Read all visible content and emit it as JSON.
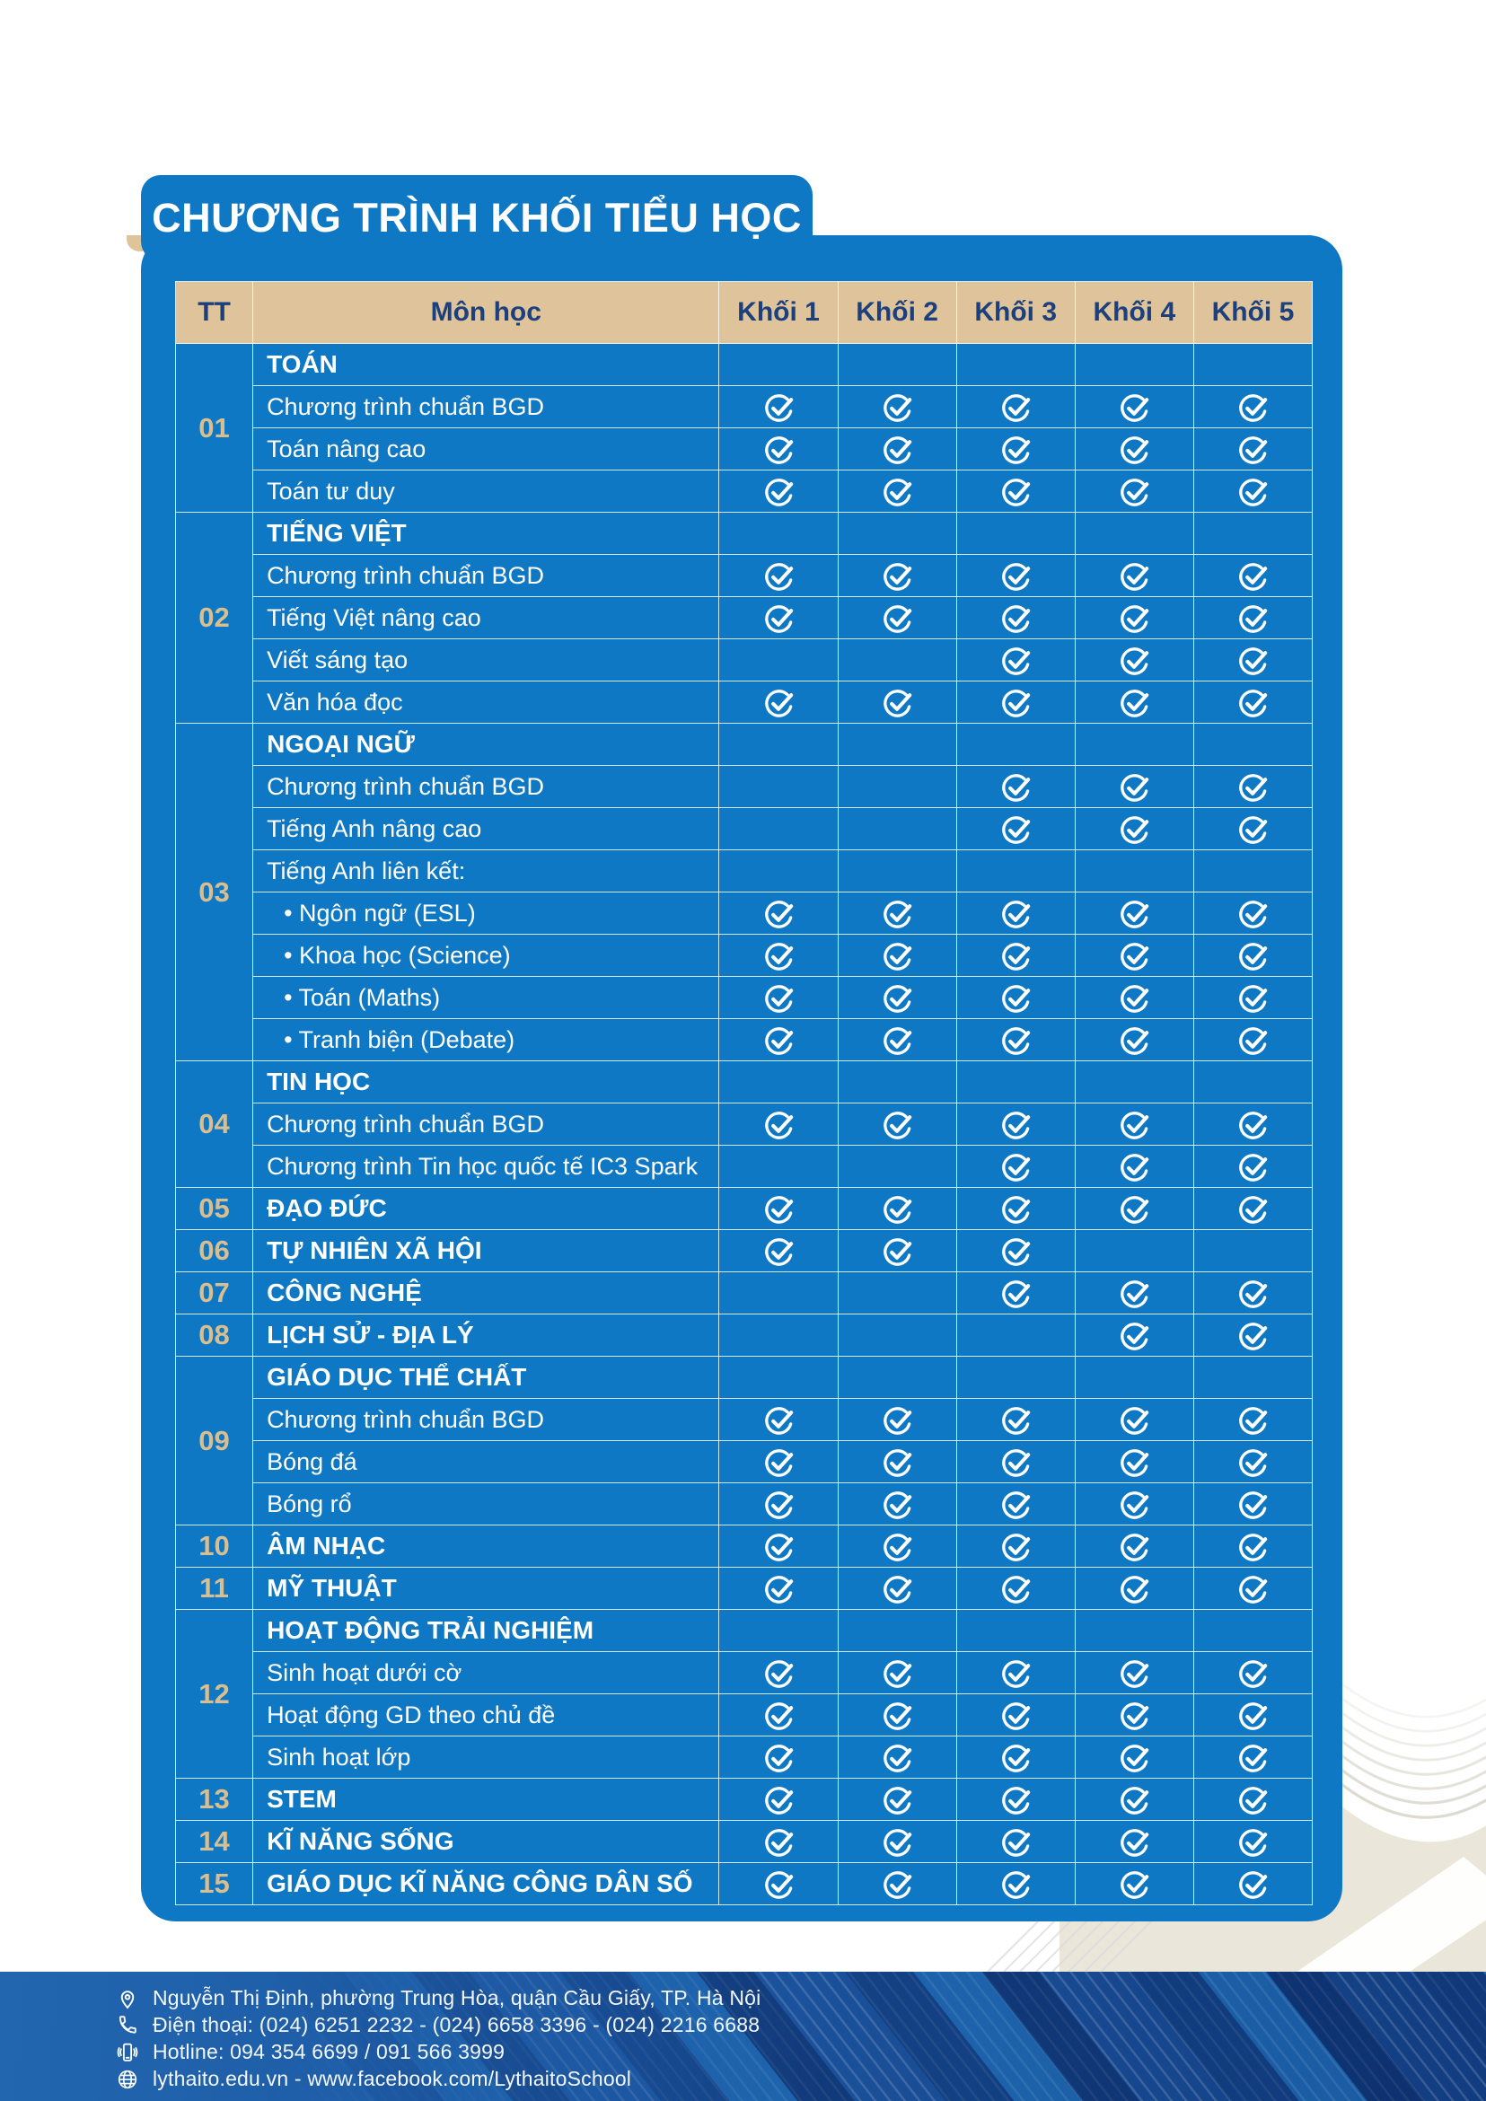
{
  "title": "CHƯƠNG TRÌNH KHỐI TIỂU HỌC",
  "colors": {
    "panel_blue": "#0F78C4",
    "header_tan": "#DEC39B",
    "header_text_navy": "#1C3F7D",
    "section_number_gold": "#D9BE8F",
    "check_icon": "#FFFFFF",
    "footer_blue_left": "#2166AF",
    "footer_blue_right": "#123C80"
  },
  "table": {
    "columns": [
      "TT",
      "Môn học",
      "Khối 1",
      "Khối 2",
      "Khối 3",
      "Khối 4",
      "Khối 5"
    ],
    "check_icon_name": "check-circle-icon",
    "sections": [
      {
        "tt": "01",
        "rows": [
          {
            "label": "TOÁN",
            "type": "group",
            "checks": [
              0,
              0,
              0,
              0,
              0
            ]
          },
          {
            "label": "Chương trình chuẩn BGD",
            "type": "item",
            "checks": [
              1,
              1,
              1,
              1,
              1
            ]
          },
          {
            "label": "Toán nâng cao",
            "type": "item",
            "checks": [
              1,
              1,
              1,
              1,
              1
            ]
          },
          {
            "label": "Toán tư duy",
            "type": "item",
            "checks": [
              1,
              1,
              1,
              1,
              1
            ]
          }
        ]
      },
      {
        "tt": "02",
        "rows": [
          {
            "label": "TIẾNG VIỆT",
            "type": "group",
            "checks": [
              0,
              0,
              0,
              0,
              0
            ]
          },
          {
            "label": "Chương trình chuẩn BGD",
            "type": "item",
            "checks": [
              1,
              1,
              1,
              1,
              1
            ]
          },
          {
            "label": "Tiếng Việt nâng cao",
            "type": "item",
            "checks": [
              1,
              1,
              1,
              1,
              1
            ]
          },
          {
            "label": "Viết sáng tạo",
            "type": "item",
            "checks": [
              0,
              0,
              1,
              1,
              1
            ]
          },
          {
            "label": "Văn hóa đọc",
            "type": "item",
            "checks": [
              1,
              1,
              1,
              1,
              1
            ]
          }
        ]
      },
      {
        "tt": "03",
        "rows": [
          {
            "label": "NGOẠI NGỮ",
            "type": "group",
            "checks": [
              0,
              0,
              0,
              0,
              0
            ]
          },
          {
            "label": "Chương trình chuẩn BGD",
            "type": "item",
            "checks": [
              0,
              0,
              1,
              1,
              1
            ]
          },
          {
            "label": "Tiếng Anh nâng cao",
            "type": "item",
            "checks": [
              0,
              0,
              1,
              1,
              1
            ]
          },
          {
            "label": "Tiếng Anh liên kết:",
            "type": "item",
            "checks": [
              0,
              0,
              0,
              0,
              0
            ]
          },
          {
            "label": "• Ngôn ngữ (ESL)",
            "type": "bullet",
            "checks": [
              1,
              1,
              1,
              1,
              1
            ]
          },
          {
            "label": "• Khoa học (Science)",
            "type": "bullet",
            "checks": [
              1,
              1,
              1,
              1,
              1
            ]
          },
          {
            "label": "•  Toán (Maths)",
            "type": "bullet",
            "checks": [
              1,
              1,
              1,
              1,
              1
            ]
          },
          {
            "label": "•  Tranh biện (Debate)",
            "type": "bullet",
            "checks": [
              1,
              1,
              1,
              1,
              1
            ]
          }
        ]
      },
      {
        "tt": "04",
        "rows": [
          {
            "label": "TIN HỌC",
            "type": "group",
            "checks": [
              0,
              0,
              0,
              0,
              0
            ]
          },
          {
            "label": "Chương trình chuẩn BGD",
            "type": "item",
            "checks": [
              1,
              1,
              1,
              1,
              1
            ]
          },
          {
            "label": "Chương trình Tin học quốc tế IC3 Spark",
            "type": "item",
            "checks": [
              0,
              0,
              1,
              1,
              1
            ]
          }
        ]
      },
      {
        "tt": "05",
        "rows": [
          {
            "label": "ĐẠO ĐỨC",
            "type": "group",
            "checks": [
              1,
              1,
              1,
              1,
              1
            ]
          }
        ]
      },
      {
        "tt": "06",
        "rows": [
          {
            "label": "TỰ NHIÊN XÃ HỘI",
            "type": "group",
            "checks": [
              1,
              1,
              1,
              0,
              0
            ]
          }
        ]
      },
      {
        "tt": "07",
        "rows": [
          {
            "label": "CÔNG NGHỆ",
            "type": "group",
            "checks": [
              0,
              0,
              1,
              1,
              1
            ]
          }
        ]
      },
      {
        "tt": "08",
        "rows": [
          {
            "label": "LỊCH SỬ - ĐỊA LÝ",
            "type": "group",
            "checks": [
              0,
              0,
              0,
              1,
              1
            ]
          }
        ]
      },
      {
        "tt": "09",
        "rows": [
          {
            "label": "GIÁO DỤC THỂ CHẤT",
            "type": "group",
            "checks": [
              0,
              0,
              0,
              0,
              0
            ]
          },
          {
            "label": "Chương trình chuẩn BGD",
            "type": "item",
            "checks": [
              1,
              1,
              1,
              1,
              1
            ]
          },
          {
            "label": "Bóng đá",
            "type": "item",
            "checks": [
              1,
              1,
              1,
              1,
              1
            ]
          },
          {
            "label": "Bóng rổ",
            "type": "item",
            "checks": [
              1,
              1,
              1,
              1,
              1
            ]
          }
        ]
      },
      {
        "tt": "10",
        "rows": [
          {
            "label": "ÂM NHẠC",
            "type": "group",
            "checks": [
              1,
              1,
              1,
              1,
              1
            ]
          }
        ]
      },
      {
        "tt": "11",
        "rows": [
          {
            "label": "MỸ THUẬT",
            "type": "group",
            "checks": [
              1,
              1,
              1,
              1,
              1
            ]
          }
        ]
      },
      {
        "tt": "12",
        "rows": [
          {
            "label": "HOẠT ĐỘNG TRẢI NGHIỆM",
            "type": "group",
            "checks": [
              0,
              0,
              0,
              0,
              0
            ]
          },
          {
            "label": "Sinh hoạt dưới cờ",
            "type": "item",
            "checks": [
              1,
              1,
              1,
              1,
              1
            ]
          },
          {
            "label": "Hoạt động GD theo chủ đề",
            "type": "item",
            "checks": [
              1,
              1,
              1,
              1,
              1
            ]
          },
          {
            "label": "Sinh hoạt lớp",
            "type": "item",
            "checks": [
              1,
              1,
              1,
              1,
              1
            ]
          }
        ]
      },
      {
        "tt": "13",
        "rows": [
          {
            "label": "STEM",
            "type": "group",
            "checks": [
              1,
              1,
              1,
              1,
              1
            ]
          }
        ]
      },
      {
        "tt": "14",
        "rows": [
          {
            "label": "KĨ NĂNG SỐNG",
            "type": "group",
            "checks": [
              1,
              1,
              1,
              1,
              1
            ]
          }
        ]
      },
      {
        "tt": "15",
        "rows": [
          {
            "label": "GIÁO DỤC KĨ NĂNG CÔNG DÂN SỐ",
            "type": "group",
            "checks": [
              1,
              1,
              1,
              1,
              1
            ]
          }
        ]
      }
    ]
  },
  "footer": {
    "lines": [
      {
        "icon": "location-pin-icon",
        "text": "Nguyễn Thị Định, phường Trung Hòa, quận Cầu Giấy, TP. Hà Nội"
      },
      {
        "icon": "phone-icon",
        "text": "Điện thoại: (024) 6251 2232  -  (024) 6658 3396  -  (024) 2216 6688"
      },
      {
        "icon": "mobile-phone-icon",
        "text": "Hotline: 094 354 6699 / 091 566 3999"
      },
      {
        "icon": "globe-icon",
        "text": "lythaito.edu.vn   -   www.facebook.com/LythaitoSchool"
      }
    ]
  }
}
